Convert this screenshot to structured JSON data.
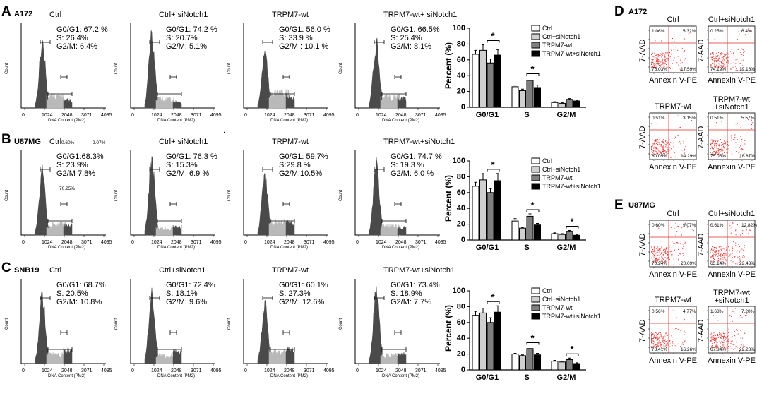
{
  "figure": {
    "panels": [
      {
        "letter": "A",
        "cell_line": "A172"
      },
      {
        "letter": "B",
        "cell_line": "U87MG"
      },
      {
        "letter": "C",
        "cell_line": "SNB19"
      },
      {
        "letter": "D",
        "cell_line": "A172"
      },
      {
        "letter": "E",
        "cell_line": "U87MG"
      }
    ],
    "histogram_axis": {
      "xlabel": "DNA Content (PM2)",
      "ylabel": "Count",
      "xticks": [
        "0",
        "1024",
        "2048",
        "3071",
        "4095"
      ]
    },
    "stray_labels": [
      "0.60%",
      "9.07%",
      "70.25%"
    ],
    "stray_dot": "."
  },
  "chart_data": [
    {
      "type": "histogram",
      "row": "A172",
      "title": "Ctrl",
      "stats": [
        "G0/G1: 67.2 %",
        "S: 26.4%",
        "G2/M: 6.4%"
      ],
      "g0g1": 67.2,
      "s": 26.4,
      "g2m": 6.4
    },
    {
      "type": "histogram",
      "row": "A172",
      "title": "Ctrl+ siNotch1",
      "stats": [
        "G0/G1: 74.2 %",
        "S: 20.7%",
        "G2/M: 5.1%"
      ],
      "g0g1": 74.2,
      "s": 20.7,
      "g2m": 5.1
    },
    {
      "type": "histogram",
      "row": "A172",
      "title": "TRPM7-wt",
      "stats": [
        "G0/G1: 56.0 %",
        "S: 33.9 %",
        "G2/M : 10.1 %"
      ],
      "g0g1": 56.0,
      "s": 33.9,
      "g2m": 10.1
    },
    {
      "type": "histogram",
      "row": "A172",
      "title": "TRPM7-wt+ siNotch1",
      "stats": [
        "G0/G1: 66.5%",
        "S: 25.4%",
        "G2/M: 8.1%"
      ],
      "g0g1": 66.5,
      "s": 25.4,
      "g2m": 8.1
    },
    {
      "type": "histogram",
      "row": "U87MG",
      "title": "Ctrl",
      "stats": [
        "G0/G1:68.3%",
        "S: 23.9%",
        "G2/M 7.8%"
      ],
      "g0g1": 68.3,
      "s": 23.9,
      "g2m": 7.8
    },
    {
      "type": "histogram",
      "row": "U87MG",
      "title": "Ctrl+ siNotch1",
      "stats": [
        "G0/G1: 76.3 %",
        "S: 15.3%",
        "G2/M: 6.9 %"
      ],
      "g0g1": 76.3,
      "s": 15.3,
      "g2m": 6.9
    },
    {
      "type": "histogram",
      "row": "U87MG",
      "title": "TRPM7-wt",
      "stats": [
        "G0/G1: 59.7%",
        "S:29.8 %",
        "G2/M:10.5%"
      ],
      "g0g1": 59.7,
      "s": 29.8,
      "g2m": 10.5
    },
    {
      "type": "histogram",
      "row": "U87MG",
      "title": "TRPM7-wt+siNotch1",
      "stats": [
        "G0/G1: 74.7 %",
        "S: 19.3 %",
        "G2/M: 6.0 %"
      ],
      "g0g1": 74.7,
      "s": 19.3,
      "g2m": 6.0
    },
    {
      "type": "histogram",
      "row": "SNB19",
      "title": "Ctrl",
      "stats": [
        "G0/G1: 68.7%",
        "S: 20.5%",
        "G2/M: 10.8%"
      ],
      "g0g1": 68.7,
      "s": 20.5,
      "g2m": 10.8
    },
    {
      "type": "histogram",
      "row": "SNB19",
      "title": "Ctrl+siNotch1",
      "stats": [
        "G0/G1: 72.4%",
        "S: 18.1%",
        "G2/M: 9.6%"
      ],
      "g0g1": 72.4,
      "s": 18.1,
      "g2m": 9.6
    },
    {
      "type": "histogram",
      "row": "SNB19",
      "title": "TRPM7-wt",
      "stats": [
        "G0/G1: 60.1%",
        "S: 27.3%",
        "G2/M: 12.6%"
      ],
      "g0g1": 60.1,
      "s": 27.3,
      "g2m": 12.6
    },
    {
      "type": "histogram",
      "row": "SNB19",
      "title": "TRPM7-wt+siNotch1",
      "stats": [
        "G0/G1: 73.4%",
        "S: 18.9%",
        "G2/M: 7.7%"
      ],
      "g0g1": 73.4,
      "s": 18.9,
      "g2m": 7.7
    },
    {
      "type": "bar",
      "row": "A172",
      "ylabel": "Percent (%)",
      "ylim": [
        0,
        100
      ],
      "yticks": [
        "0",
        "20",
        "40",
        "60",
        "80",
        "100"
      ],
      "categories": [
        "G0/G1",
        "S",
        "G2/M"
      ],
      "series": [
        {
          "name": "Ctrl",
          "values": [
            67,
            26,
            6
          ],
          "errors": [
            5,
            2,
            1
          ]
        },
        {
          "name": "Ctrl+siNotch1",
          "values": [
            72,
            21,
            5
          ],
          "errors": [
            7,
            2,
            1
          ]
        },
        {
          "name": "TRPM7-wt",
          "values": [
            56,
            34,
            10
          ],
          "errors": [
            5,
            3,
            1
          ]
        },
        {
          "name": "TRPM7-wt+siNotch1",
          "values": [
            66,
            25,
            8
          ],
          "errors": [
            7,
            3,
            1
          ]
        }
      ],
      "significance": [
        {
          "category": "G0/G1",
          "label": "*"
        },
        {
          "category": "S",
          "label": "*"
        }
      ]
    },
    {
      "type": "bar",
      "row": "U87MG",
      "ylabel": "Percent (%)",
      "ylim": [
        0,
        100
      ],
      "yticks": [
        "0",
        "20",
        "40",
        "60",
        "80",
        "100"
      ],
      "categories": [
        "G0/G1",
        "S",
        "G2/M"
      ],
      "series": [
        {
          "name": "Ctrl",
          "values": [
            68,
            24,
            8
          ],
          "errors": [
            5,
            3,
            1
          ]
        },
        {
          "name": "Ctrl+siNotch1",
          "values": [
            76,
            15,
            7
          ],
          "errors": [
            8,
            1,
            1
          ]
        },
        {
          "name": "TRPM7-wt",
          "values": [
            60,
            30,
            11
          ],
          "errors": [
            5,
            3,
            1
          ]
        },
        {
          "name": "TRPM7-wt+siNotch1",
          "values": [
            75,
            19,
            6
          ],
          "errors": [
            9,
            2,
            1
          ]
        }
      ],
      "significance": [
        {
          "category": "G0/G1",
          "label": "*"
        },
        {
          "category": "S",
          "label": "*"
        },
        {
          "category": "G2/M",
          "label": "*"
        }
      ]
    },
    {
      "type": "bar",
      "row": "SNB19",
      "ylabel": "Percent (%)",
      "ylim": [
        0,
        100
      ],
      "yticks": [
        "0",
        "20",
        "40",
        "60",
        "80",
        "100"
      ],
      "categories": [
        "G0/G1",
        "S",
        "G2/M"
      ],
      "series": [
        {
          "name": "Ctrl",
          "values": [
            69,
            20,
            11
          ],
          "errors": [
            5,
            1,
            1
          ]
        },
        {
          "name": "Ctrl+siNotch1",
          "values": [
            72,
            18,
            10
          ],
          "errors": [
            6,
            1,
            1
          ]
        },
        {
          "name": "TRPM7-wt",
          "values": [
            60,
            27,
            13
          ],
          "errors": [
            6,
            2,
            2
          ]
        },
        {
          "name": "TRPM7-wt+siNotch1",
          "values": [
            73,
            19,
            8
          ],
          "errors": [
            8,
            2,
            1
          ]
        }
      ],
      "significance": [
        {
          "category": "G0/G1",
          "label": "*"
        },
        {
          "category": "S",
          "label": "*"
        },
        {
          "category": "G2/M",
          "label": "*"
        }
      ]
    },
    {
      "type": "scatter",
      "row": "A172",
      "title": "Ctrl",
      "xlabel": "Annexin V-PE",
      "ylabel": "7-AAD",
      "quadrants": [
        "1.06%",
        "5.32%",
        "76.03%",
        "17.59%"
      ],
      "percent": [
        1.06,
        5.32,
        76.03,
        17.59
      ]
    },
    {
      "type": "scatter",
      "row": "A172",
      "title": "Ctrl+siNotch1",
      "xlabel": "Annexin V-PE",
      "ylabel": "7-AAD",
      "quadrants": [
        "0.25%",
        "6.4%",
        "74.19%",
        "19.16%"
      ],
      "percent": [
        0.25,
        6.4,
        74.19,
        19.16
      ]
    },
    {
      "type": "scatter",
      "row": "A172",
      "title": "TRPM7-wt",
      "xlabel": "Annexin V-PE",
      "ylabel": "7-AAD",
      "quadrants": [
        "0.51%",
        "3.15%",
        "80.05%",
        "14.29%"
      ],
      "percent": [
        0.51,
        3.15,
        80.05,
        14.29
      ]
    },
    {
      "type": "scatter",
      "row": "A172",
      "title": "TRPM7-wt +siNotch1",
      "xlabel": "Annexin V-PE",
      "ylabel": "7-AAD",
      "quadrants": [
        "0.51%",
        "5.57%",
        "75.05%",
        "18.87%"
      ],
      "percent": [
        0.51,
        5.57,
        75.05,
        18.87
      ]
    },
    {
      "type": "scatter",
      "row": "U87MG",
      "title": "Ctrl",
      "xlabel": "Annexin V-PE",
      "ylabel": "7-AAD",
      "quadrants": [
        "0.60%",
        "9.07%",
        "70.24%",
        "20.09%"
      ],
      "percent": [
        0.6,
        9.07,
        70.24,
        20.09
      ]
    },
    {
      "type": "scatter",
      "row": "U87MG",
      "title": "Ctrl+siNotch1",
      "xlabel": "Annexin V-PE",
      "ylabel": "7-AAD",
      "quadrants": [
        "0.61%",
        "12.82%",
        "63.14%",
        "23.43%"
      ],
      "percent": [
        0.61,
        12.82,
        63.14,
        23.43
      ]
    },
    {
      "type": "scatter",
      "row": "U87MG",
      "title": "TRPM7-wt",
      "xlabel": "Annexin V-PE",
      "ylabel": "7-AAD",
      "quadrants": [
        "0.56%",
        "4.77%",
        "78.41%",
        "16.26%"
      ],
      "percent": [
        0.56,
        4.77,
        78.41,
        16.26
      ]
    },
    {
      "type": "scatter",
      "row": "U87MG",
      "title": "TRPM7-wt +siNotch1",
      "xlabel": "Annexin V-PE",
      "ylabel": "7-AAD",
      "quadrants": [
        "1.68%",
        "7.20%",
        "67.84%",
        "23.28%"
      ],
      "percent": [
        1.68,
        7.2,
        67.84,
        23.28
      ]
    }
  ],
  "colors": {
    "ink": "#000000",
    "hist_dark": "#4a4a4a",
    "hist_light": "#b9b9b9",
    "bar_series": [
      "#ffffff",
      "#d0d0d0",
      "#7f7f7f",
      "#000000"
    ],
    "flow_points": "#e0302a",
    "flow_gate": "#e0302a"
  }
}
